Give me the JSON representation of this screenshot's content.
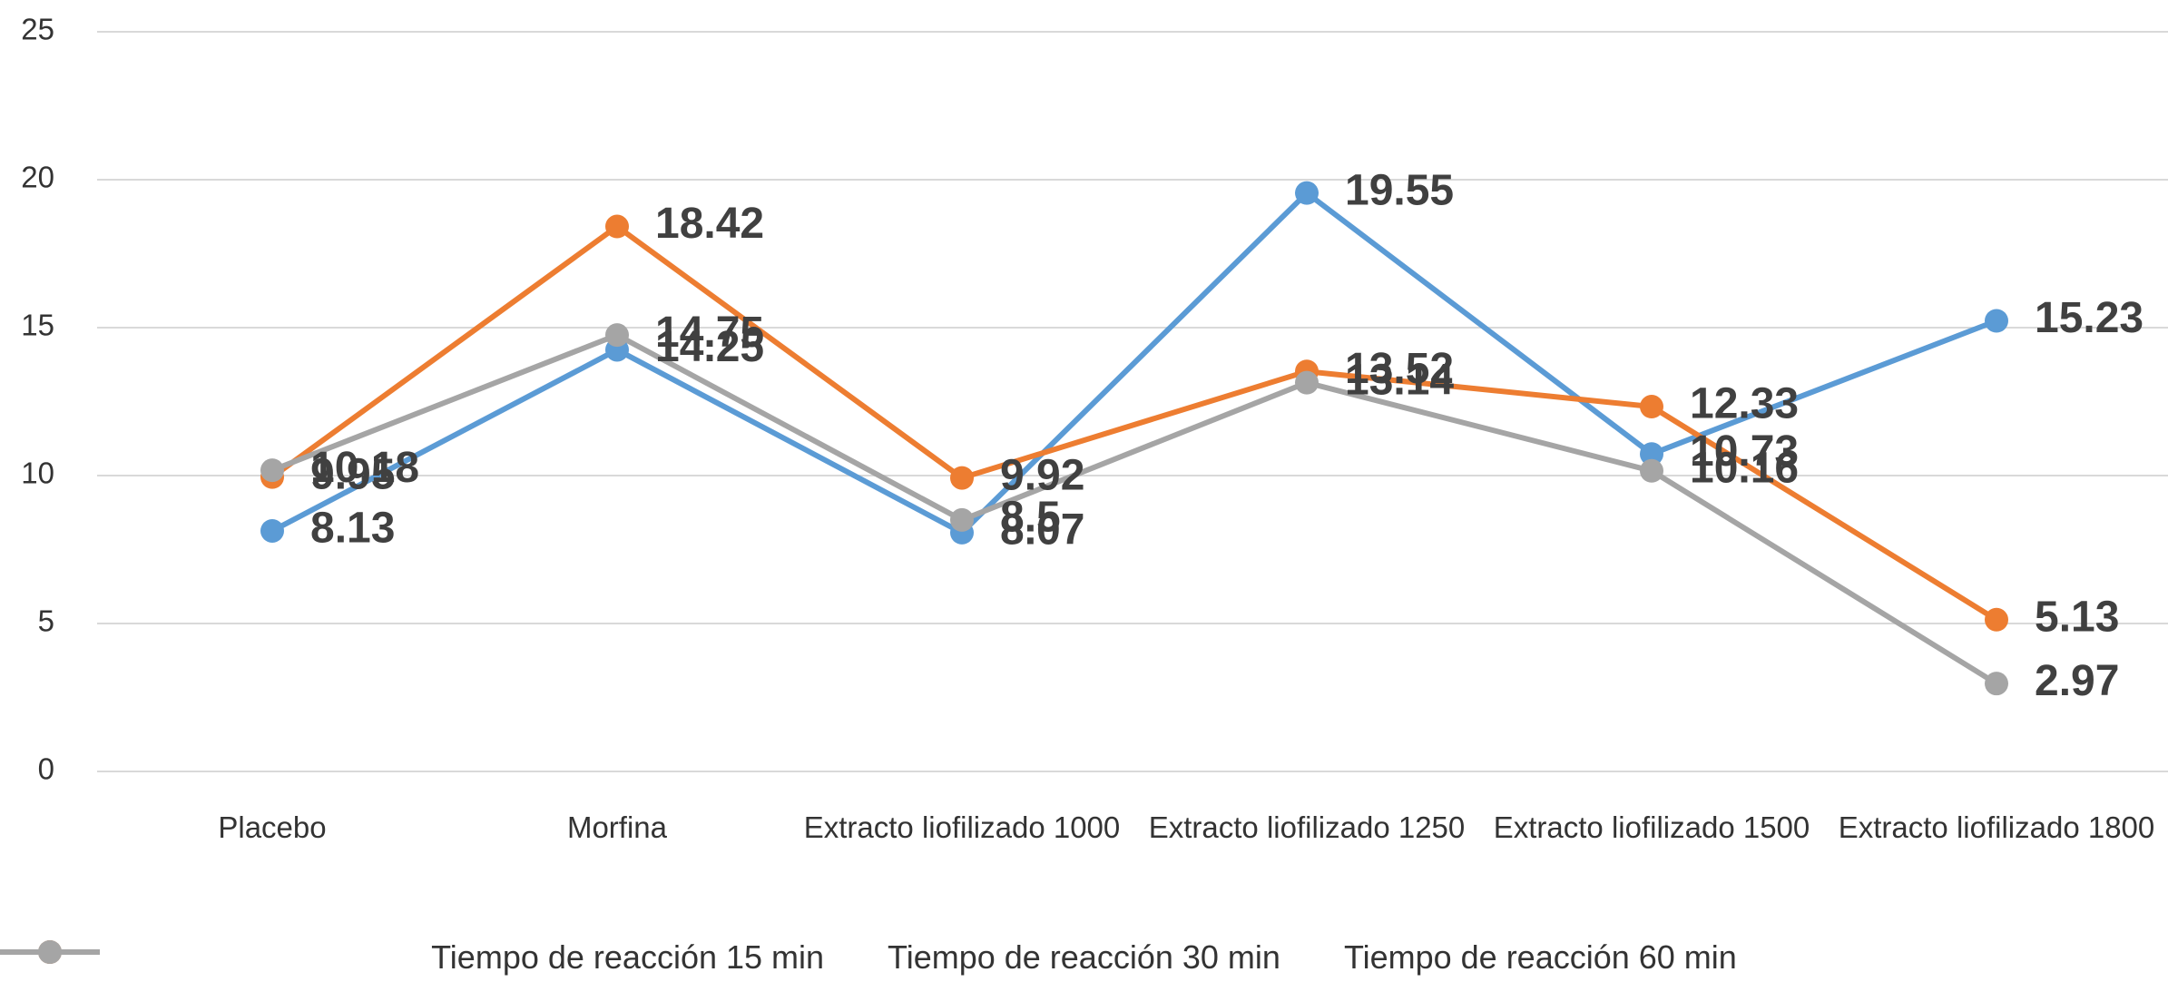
{
  "chart_data": {
    "type": "line",
    "categories": [
      "Placebo",
      "Morfina",
      "Extracto liofilizado 1000",
      "Extracto liofilizado 1250",
      "Extracto liofilizado 1500",
      "Extracto liofilizado 1800"
    ],
    "series": [
      {
        "name": "Tiempo de reacción 15 min",
        "color": "#5b9bd5",
        "values": [
          8.13,
          14.25,
          8.07,
          19.55,
          10.73,
          15.23
        ]
      },
      {
        "name": "Tiempo de reacción 30 min",
        "color": "#ed7d31",
        "values": [
          9.95,
          18.42,
          9.92,
          13.52,
          12.33,
          5.13
        ]
      },
      {
        "name": "Tiempo de reacción 60 min",
        "color": "#a5a5a5",
        "values": [
          10.18,
          14.75,
          8.5,
          13.14,
          10.16,
          2.97
        ]
      }
    ],
    "ylim": [
      0,
      25
    ],
    "yticks": [
      0,
      5,
      10,
      15,
      20,
      25
    ],
    "grid": true,
    "legend": "bottom"
  }
}
